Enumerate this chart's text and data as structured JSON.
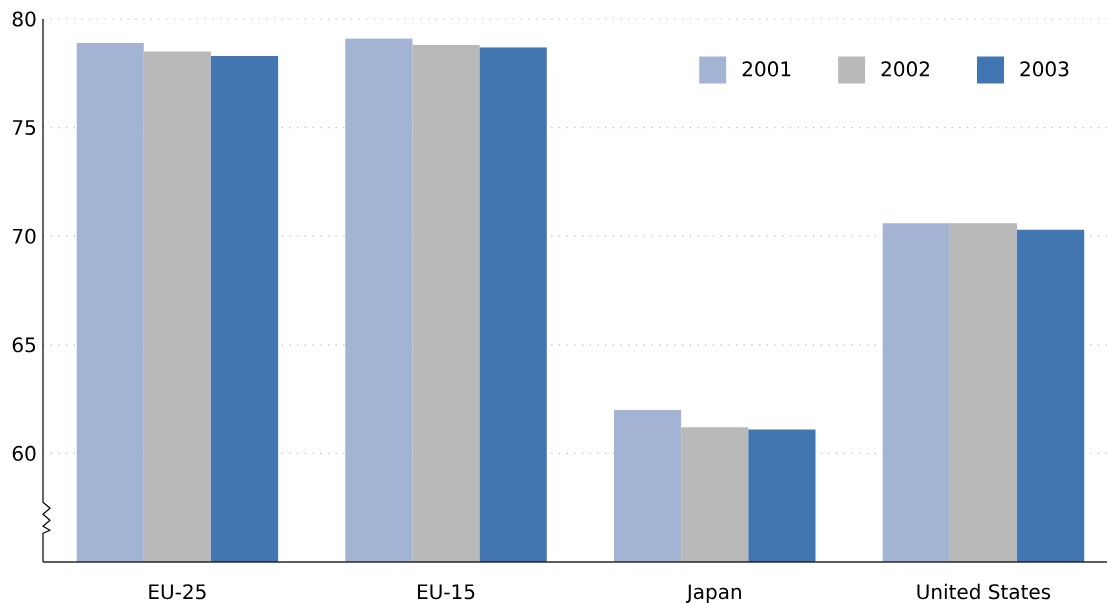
{
  "chart_data": {
    "type": "bar",
    "categories": [
      "EU-25",
      "EU-15",
      "Japan",
      "United States"
    ],
    "series": [
      {
        "name": "2001",
        "color": "#a2b3d3",
        "values": [
          78.9,
          79.1,
          62.0,
          70.6
        ]
      },
      {
        "name": "2002",
        "color": "#b9b9b9",
        "values": [
          78.5,
          78.8,
          61.2,
          70.6
        ]
      },
      {
        "name": "2003",
        "color": "#4276b3",
        "values": [
          78.3,
          78.7,
          61.1,
          70.3
        ]
      }
    ],
    "ylim": [
      55,
      80
    ],
    "yticks": [
      60,
      65,
      70,
      75,
      80
    ],
    "grid": "y",
    "legend": "top right"
  }
}
